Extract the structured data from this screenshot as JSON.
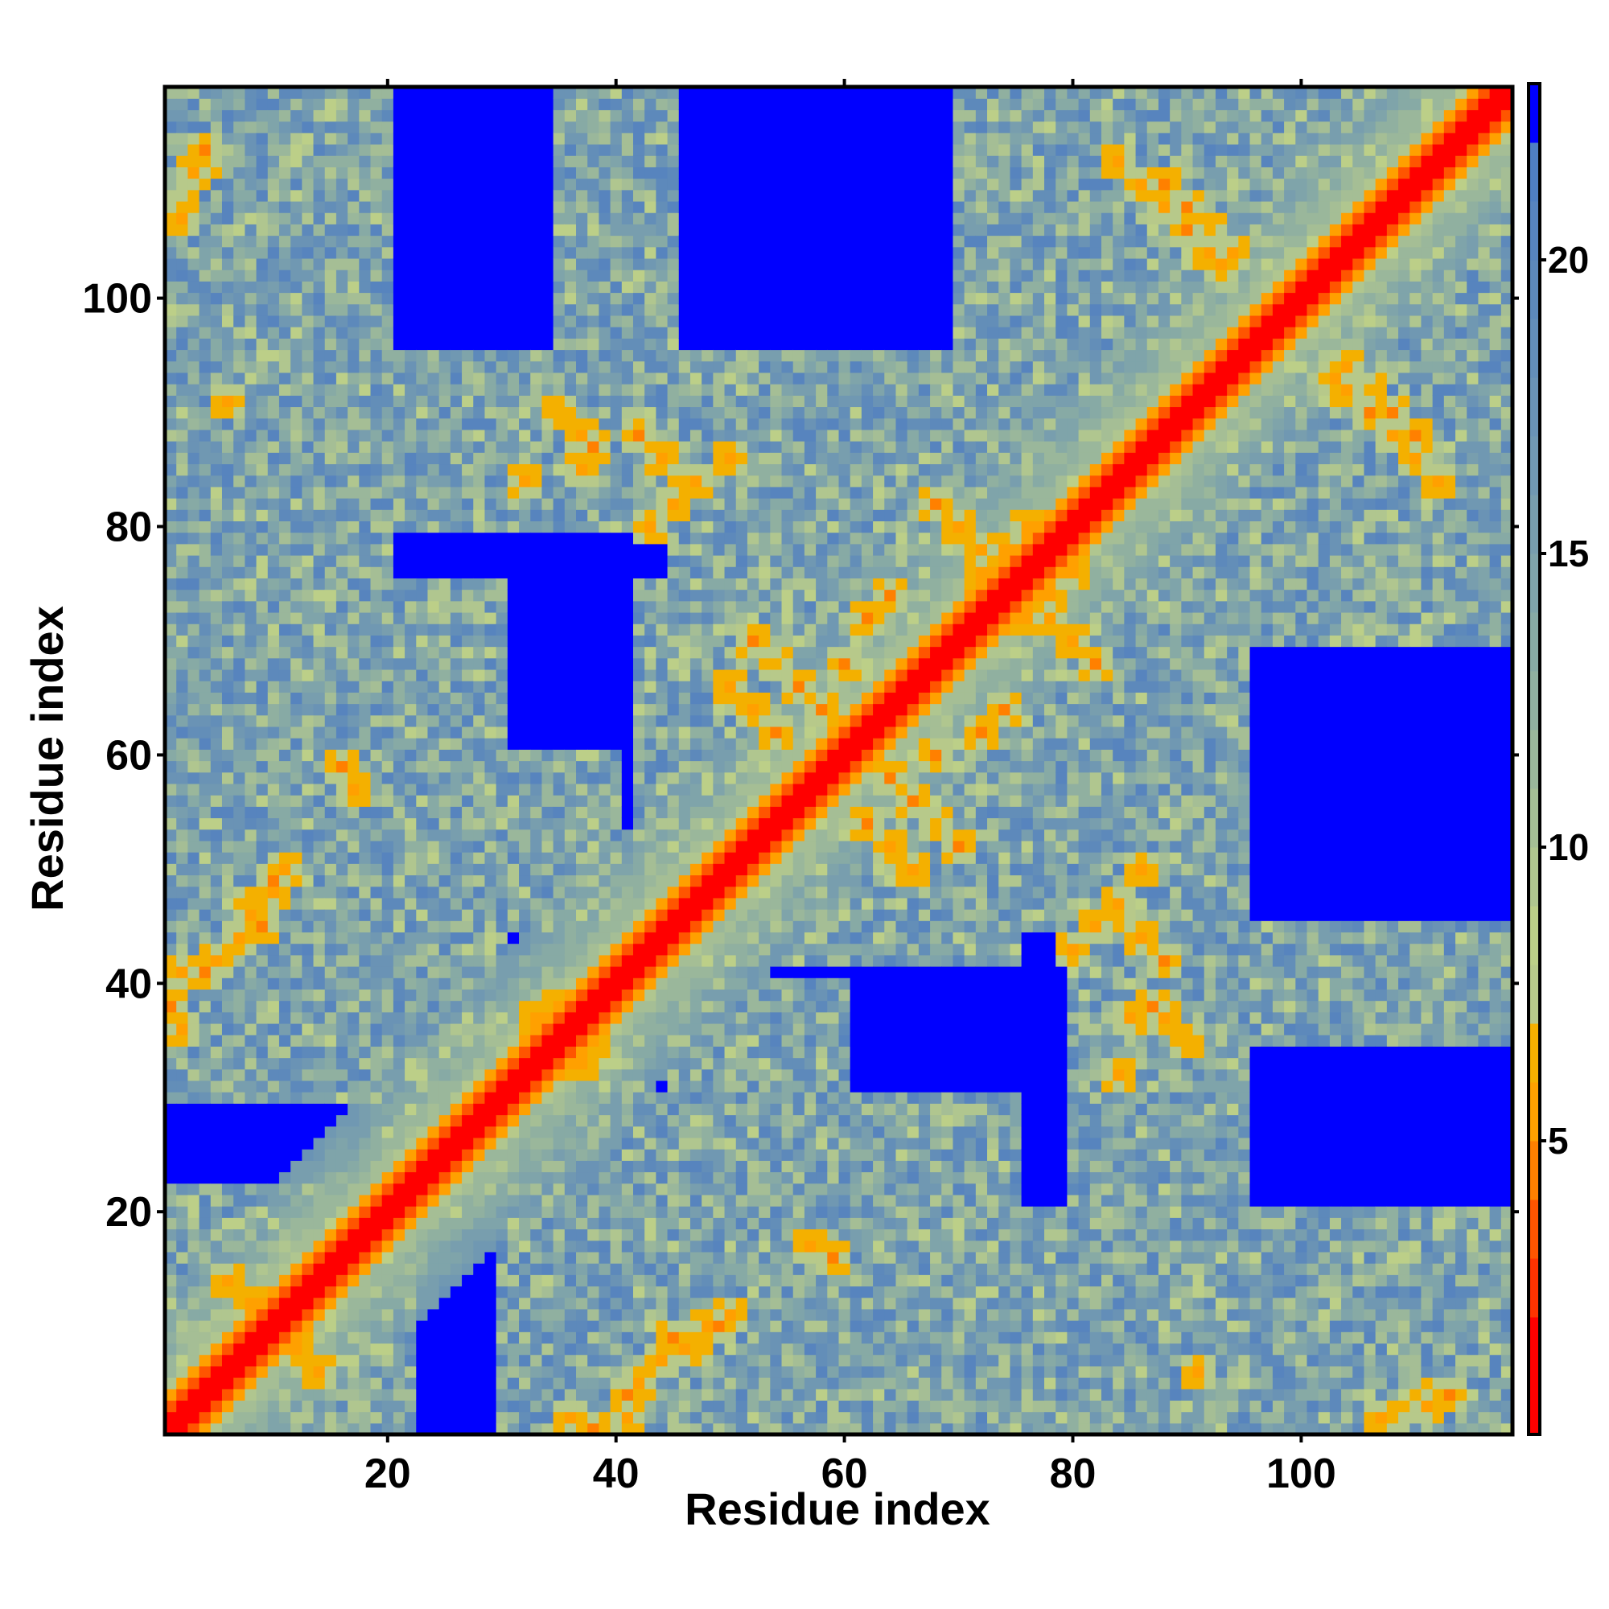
{
  "chart_data": {
    "type": "heatmap",
    "title": "",
    "xlabel": "Residue index",
    "ylabel": "Residue index",
    "n_residues": 118,
    "xlim": [
      0.5,
      118.5
    ],
    "ylim": [
      0.5,
      118.5
    ],
    "x_ticks": [
      20,
      40,
      60,
      80,
      100
    ],
    "y_ticks": [
      20,
      40,
      60,
      80,
      100
    ],
    "colorbar": {
      "ticks": [
        5,
        10,
        15,
        20
      ],
      "range": [
        0,
        23
      ],
      "bins": [
        {
          "max": 2,
          "color": "#ff0000"
        },
        {
          "max": 3,
          "color": "#ff3300"
        },
        {
          "max": 4,
          "color": "#ff5500"
        },
        {
          "max": 5,
          "color": "#ff8000"
        },
        {
          "max": 6,
          "color": "#ffa000"
        },
        {
          "max": 7,
          "color": "#f4b000"
        },
        {
          "max": 8,
          "color": "#b7c98a"
        },
        {
          "max": 9,
          "color": "#bccf88"
        },
        {
          "max": 10,
          "color": "#b0c68f"
        },
        {
          "max": 11,
          "color": "#a5be95"
        },
        {
          "max": 12,
          "color": "#9ab79b"
        },
        {
          "max": 13,
          "color": "#90b0a0"
        },
        {
          "max": 14,
          "color": "#87aaa5"
        },
        {
          "max": 15,
          "color": "#7fa4aa"
        },
        {
          "max": 16,
          "color": "#789eae"
        },
        {
          "max": 17,
          "color": "#7098b2"
        },
        {
          "max": 18,
          "color": "#6a93b5"
        },
        {
          "max": 19,
          "color": "#638eb8"
        },
        {
          "max": 20,
          "color": "#5d89bb"
        },
        {
          "max": 21,
          "color": "#5784be"
        },
        {
          "max": 22,
          "color": "#4f7fc2"
        },
        {
          "max": 99,
          "color": "#0000ff"
        }
      ]
    },
    "features": {
      "structured_blocks": [
        [
          1,
          22,
          1,
          22
        ],
        [
          20,
          42,
          20,
          42
        ],
        [
          42,
          75,
          42,
          75
        ],
        [
          70,
          118,
          70,
          118
        ],
        [
          1,
          20,
          80,
          118
        ],
        [
          35,
          45,
          80,
          118
        ],
        [
          1,
          15,
          36,
          55
        ],
        [
          1,
          30,
          55,
          75
        ],
        [
          20,
          40,
          45,
          60
        ],
        [
          5,
          30,
          36,
          50
        ],
        [
          45,
          90,
          1,
          20
        ],
        [
          80,
          118,
          35,
          45
        ],
        [
          85,
          118,
          1,
          10
        ],
        [
          60,
          80,
          80,
          95
        ],
        [
          45,
          70,
          75,
          95
        ],
        [
          80,
          95,
          20,
          35
        ],
        [
          30,
          50,
          1,
          20
        ]
      ],
      "close_contacts": [
        [
          1,
          38
        ],
        [
          2,
          36
        ],
        [
          4,
          41
        ],
        [
          5,
          42
        ],
        [
          7,
          44
        ],
        [
          8,
          46
        ],
        [
          10,
          48
        ],
        [
          11,
          50
        ],
        [
          6,
          91
        ],
        [
          4,
          112
        ],
        [
          2,
          108
        ],
        [
          10,
          12
        ],
        [
          12,
          8
        ],
        [
          14,
          6
        ],
        [
          33,
          37
        ],
        [
          35,
          38
        ],
        [
          28,
          30
        ],
        [
          43,
          80
        ],
        [
          45,
          82
        ],
        [
          47,
          84
        ],
        [
          50,
          86
        ],
        [
          52,
          70
        ],
        [
          54,
          68
        ],
        [
          56,
          66
        ],
        [
          58,
          64
        ],
        [
          62,
          54
        ],
        [
          64,
          52
        ],
        [
          66,
          50
        ],
        [
          68,
          60
        ],
        [
          72,
          62
        ],
        [
          74,
          64
        ],
        [
          72,
          76
        ],
        [
          74,
          78
        ],
        [
          76,
          80
        ],
        [
          78,
          72
        ],
        [
          80,
          70
        ],
        [
          82,
          68
        ],
        [
          84,
          46
        ],
        [
          86,
          44
        ],
        [
          88,
          42
        ],
        [
          85,
          37
        ],
        [
          87,
          38
        ],
        [
          84,
          32
        ],
        [
          88,
          110
        ],
        [
          90,
          108
        ],
        [
          92,
          106
        ],
        [
          94,
          104
        ],
        [
          104,
          92
        ],
        [
          106,
          90
        ],
        [
          108,
          88
        ],
        [
          110,
          86
        ],
        [
          112,
          84
        ],
        [
          103,
          93
        ],
        [
          107,
          2
        ],
        [
          111,
          3
        ],
        [
          113,
          4
        ],
        [
          45,
          9
        ],
        [
          47,
          8
        ],
        [
          49,
          10
        ],
        [
          41,
          2
        ],
        [
          38,
          1
        ],
        [
          36,
          2
        ],
        [
          59,
          16
        ],
        [
          57,
          17
        ],
        [
          35,
          90
        ],
        [
          37,
          88
        ],
        [
          115,
          117
        ]
      ]
    }
  }
}
